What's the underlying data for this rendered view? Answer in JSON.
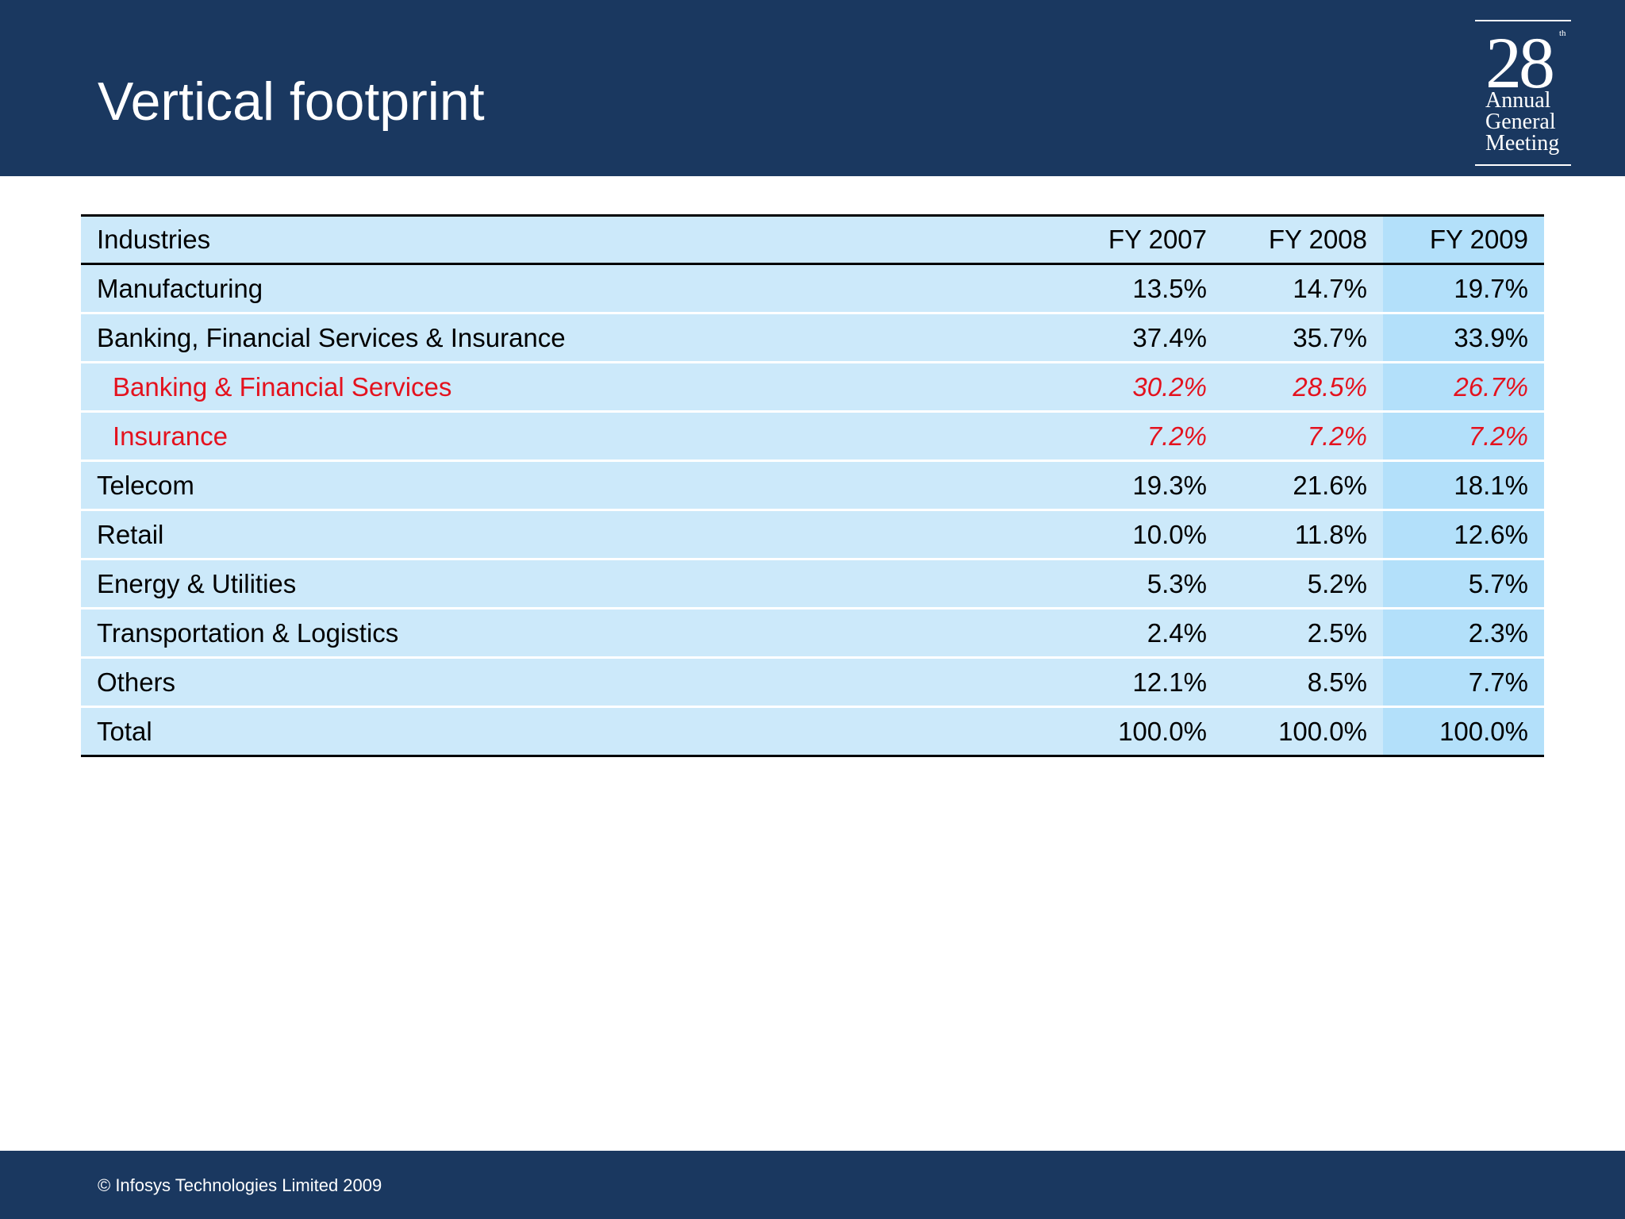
{
  "header": {
    "title": "Vertical footprint",
    "logo": {
      "number": "28",
      "superscript": "th",
      "lines": [
        "Annual",
        "General",
        "Meeting"
      ]
    }
  },
  "table": {
    "columns": [
      "Industries",
      "FY 2007",
      "FY 2008",
      "FY 2009"
    ],
    "rows": [
      {
        "industry": "Manufacturing",
        "fy2007": "13.5%",
        "fy2008": "14.7%",
        "fy2009": "19.7%"
      },
      {
        "industry": "Banking, Financial Services & Insurance",
        "fy2007": "37.4%",
        "fy2008": "35.7%",
        "fy2009": "33.9%"
      },
      {
        "industry": "Banking & Financial Services",
        "fy2007": "30.2%",
        "fy2008": "28.5%",
        "fy2009": "26.7%",
        "sub": true
      },
      {
        "industry": "Insurance",
        "fy2007": "7.2%",
        "fy2008": "7.2%",
        "fy2009": "7.2%",
        "sub": true
      },
      {
        "industry": "Telecom",
        "fy2007": "19.3%",
        "fy2008": "21.6%",
        "fy2009": "18.1%"
      },
      {
        "industry": "Retail",
        "fy2007": "10.0%",
        "fy2008": "11.8%",
        "fy2009": "12.6%"
      },
      {
        "industry": "Energy & Utilities",
        "fy2007": "5.3%",
        "fy2008": "5.2%",
        "fy2009": "5.7%"
      },
      {
        "industry": "Transportation & Logistics",
        "fy2007": "2.4%",
        "fy2008": "2.5%",
        "fy2009": "2.3%"
      },
      {
        "industry": "Others",
        "fy2007": "12.1%",
        "fy2008": "8.5%",
        "fy2009": "7.7%"
      },
      {
        "industry": "Total",
        "fy2007": "100.0%",
        "fy2008": "100.0%",
        "fy2009": "100.0%"
      }
    ]
  },
  "footer": {
    "copyright": "© Infosys Technologies Limited 2009"
  },
  "colors": {
    "brand_navy": "#1a3860",
    "row_fill": "#cce9fa",
    "highlight_column_fill": "#b3e0fa",
    "subcategory_text": "#e4121e"
  }
}
